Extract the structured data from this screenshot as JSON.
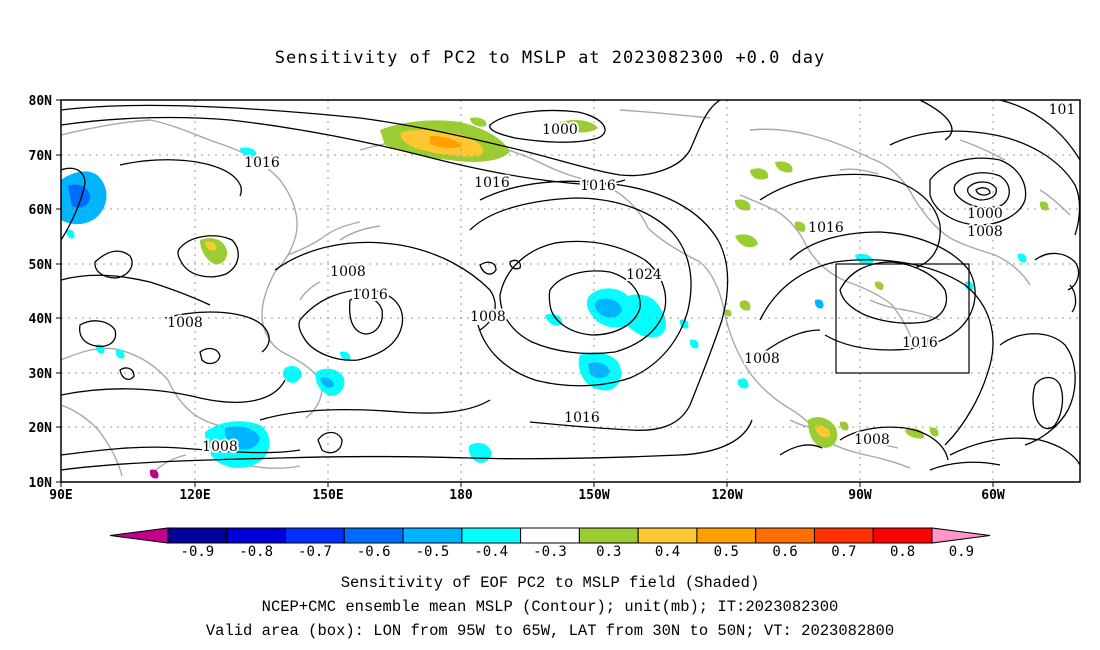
{
  "title": "Sensitivity of PC2 to MSLP at 2023082300 +0.0 day",
  "lat_labels": [
    "80N",
    "70N",
    "60N",
    "50N",
    "40N",
    "30N",
    "20N",
    "10N"
  ],
  "lon_labels": [
    "90E",
    "120E",
    "150E",
    "180",
    "150W",
    "120W",
    "90W",
    "60W"
  ],
  "contour_labels": [
    {
      "text": "1000"
    },
    {
      "text": "101"
    },
    {
      "text": "1016"
    },
    {
      "text": "1016"
    },
    {
      "text": "1016"
    },
    {
      "text": "1000"
    },
    {
      "text": "1008"
    },
    {
      "text": "1016"
    },
    {
      "text": "1008"
    },
    {
      "text": "1024"
    },
    {
      "text": "1016"
    },
    {
      "text": "1008"
    },
    {
      "text": "1008"
    },
    {
      "text": "1008"
    },
    {
      "text": "1016"
    },
    {
      "text": "1008"
    },
    {
      "text": "1016"
    },
    {
      "text": "1008"
    }
  ],
  "colorbar": {
    "labels": [
      "-0.9",
      "-0.8",
      "-0.7",
      "-0.6",
      "-0.5",
      "-0.4",
      "-0.3",
      "0.3",
      "0.4",
      "0.5",
      "0.6",
      "0.7",
      "0.8",
      "0.9"
    ],
    "colors": [
      "#00009a",
      "#0000d8",
      "#0030ff",
      "#006cff",
      "#00b4ff",
      "#00ffff",
      "#ffffff",
      "#9acd32",
      "#ffc832",
      "#ffa000",
      "#ff6e00",
      "#ff3200",
      "#ff0000"
    ],
    "low_color": "#c0008c",
    "high_color": "#ff96c8"
  },
  "footer": {
    "line1": "Sensitivity of EOF PC2 to MSLP field (Shaded)",
    "line2": "NCEP+CMC ensemble mean MSLP (Contour); unit(mb); IT:2023082300",
    "line3": "Valid area (box): LON from 95W to 65W, LAT from 30N to 50N; VT: 2023082800"
  }
}
